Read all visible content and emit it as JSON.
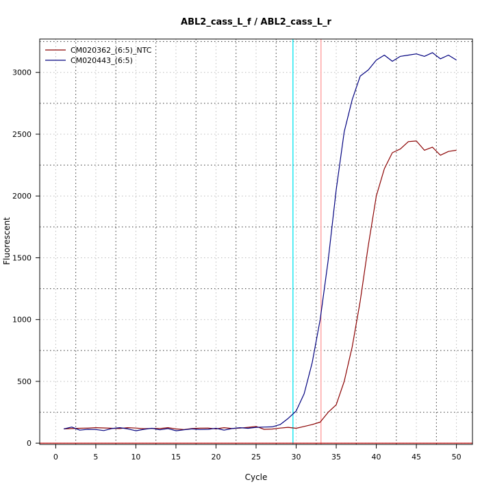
{
  "chart_data": {
    "type": "line",
    "title": "ABL2_cass_L_f / ABL2_cass_L_r",
    "xlabel": "Cycle",
    "ylabel": "Fluorescent",
    "xlim": [
      -2,
      52
    ],
    "ylim": [
      -10,
      3270
    ],
    "x_ticks": [
      0,
      5,
      10,
      15,
      20,
      25,
      30,
      35,
      40,
      45,
      50
    ],
    "y_ticks": [
      0,
      500,
      1000,
      1500,
      2000,
      2500,
      3000
    ],
    "major_grid_x": [
      2.5,
      7.5,
      12.5,
      17.5,
      22.5,
      27.5,
      32.5,
      37.5,
      42.5,
      47.5
    ],
    "major_grid_y": [
      250,
      750,
      1250,
      1750,
      2250,
      2750,
      3250
    ],
    "grid": true,
    "legend_position": "top-left",
    "series": [
      {
        "name": "CM020362_(6:5)_NTC",
        "color": "#8b0000",
        "x": [
          1,
          2,
          3,
          4,
          5,
          6,
          7,
          8,
          9,
          10,
          11,
          12,
          13,
          14,
          15,
          16,
          17,
          18,
          19,
          20,
          21,
          22,
          23,
          24,
          25,
          26,
          27,
          28,
          29,
          30,
          31,
          32,
          33,
          34,
          35,
          36,
          37,
          38,
          39,
          40,
          41,
          42,
          43,
          44,
          45,
          46,
          47,
          48,
          49,
          50
        ],
        "values": [
          115,
          118,
          120,
          122,
          125,
          123,
          120,
          118,
          125,
          122,
          117,
          119,
          118,
          125,
          115,
          110,
          118,
          121,
          122,
          115,
          125,
          118,
          122,
          128,
          135,
          112,
          114,
          122,
          128,
          120,
          135,
          150,
          170,
          250,
          310,
          500,
          780,
          1150,
          1600,
          2000,
          2220,
          2350,
          2380,
          2440,
          2445,
          2370,
          2395,
          2330,
          2360,
          2370
        ]
      },
      {
        "name": "CM020443_(6:5)",
        "color": "#00007f",
        "x": [
          1,
          2,
          3,
          4,
          5,
          6,
          7,
          8,
          9,
          10,
          11,
          12,
          13,
          14,
          15,
          16,
          17,
          18,
          19,
          20,
          21,
          22,
          23,
          24,
          25,
          26,
          27,
          28,
          29,
          30,
          31,
          32,
          33,
          34,
          35,
          36,
          37,
          38,
          39,
          40,
          41,
          42,
          43,
          44,
          45,
          46,
          47,
          48,
          49,
          50
        ],
        "values": [
          115,
          130,
          105,
          112,
          110,
          102,
          118,
          125,
          115,
          100,
          112,
          120,
          108,
          118,
          100,
          108,
          115,
          110,
          112,
          120,
          105,
          118,
          125,
          120,
          128,
          130,
          132,
          150,
          200,
          260,
          400,
          650,
          1000,
          1480,
          2050,
          2520,
          2780,
          2970,
          3020,
          3100,
          3140,
          3090,
          3130,
          3140,
          3150,
          3130,
          3160,
          3110,
          3140,
          3100
        ]
      }
    ],
    "reference_lines": {
      "vertical": [
        {
          "x": 29.6,
          "color": "#00e5ee"
        },
        {
          "x": 33.1,
          "color": "#ff9999"
        }
      ],
      "horizontal": [
        {
          "y": 0,
          "color": "#cc0000"
        }
      ]
    }
  }
}
